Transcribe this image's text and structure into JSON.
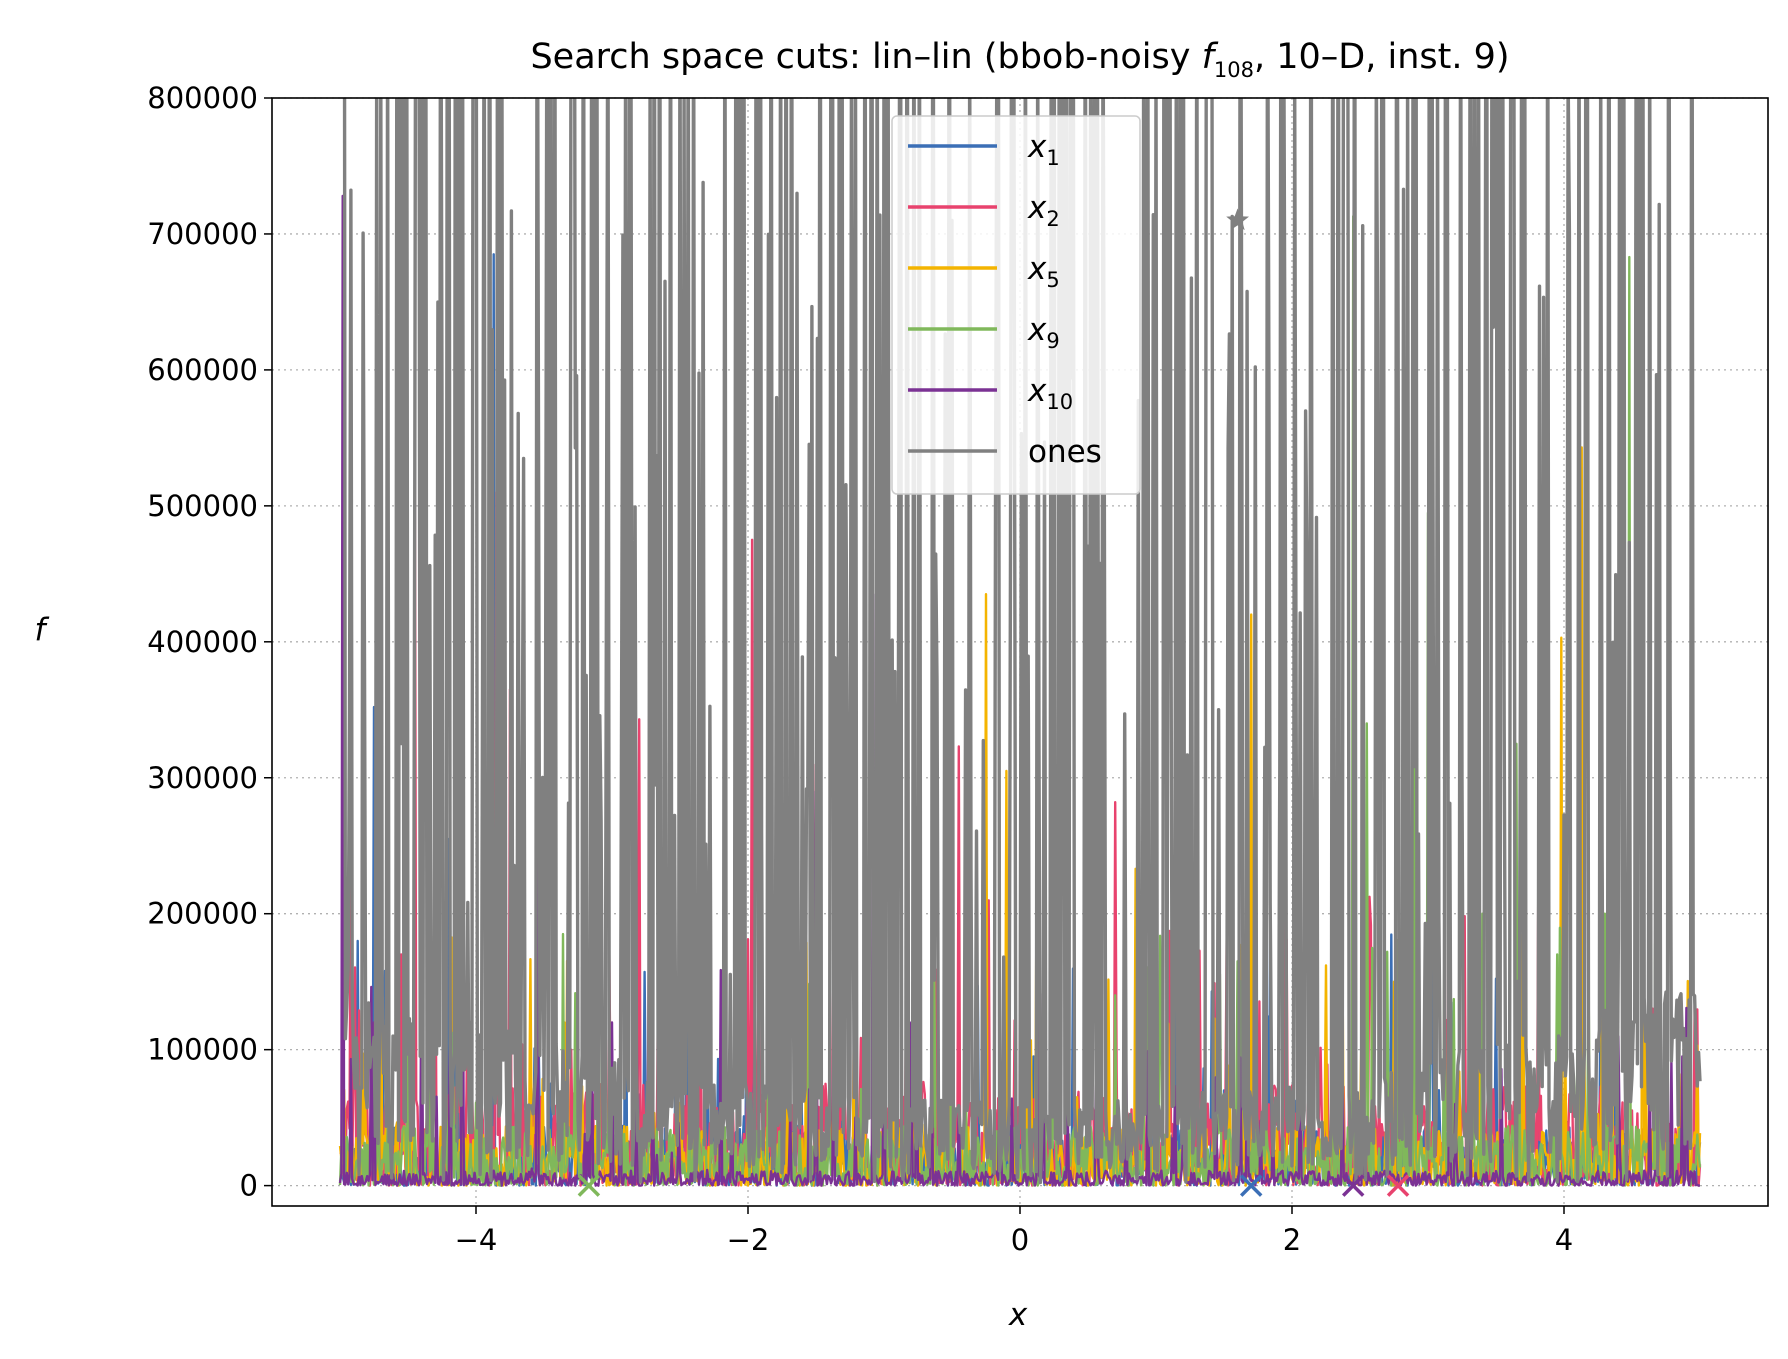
{
  "chart_data": {
    "type": "line",
    "title_parts": {
      "prefix": "Search space cuts: lin–lin (bbob-noisy ",
      "func_letter": "f",
      "func_sub": "108",
      "suffix": ", 10–D, inst. 9)"
    },
    "xlabel": "x",
    "ylabel": "f",
    "xlim": [
      -5.5,
      5.5
    ],
    "ylim": [
      -15000,
      800000
    ],
    "x_ticks": [
      -4,
      -2,
      0,
      2,
      4
    ],
    "x_tick_labels": [
      "−4",
      "−2",
      "0",
      "2",
      "4"
    ],
    "y_ticks": [
      0,
      100000,
      200000,
      300000,
      400000,
      500000,
      600000,
      700000,
      800000
    ],
    "y_tick_labels": [
      "0",
      "100000",
      "200000",
      "300000",
      "400000",
      "500000",
      "600000",
      "700000",
      "800000"
    ],
    "grid": true,
    "legend_placement": "upper-center",
    "x_range_sampled": [
      -5,
      5
    ],
    "series": [
      {
        "name": "x",
        "sub": "1",
        "color": "#3b6fb6",
        "peaks": [
          [
            -4.87,
            180000
          ],
          [
            -4.75,
            352000
          ],
          [
            -4.2,
            255000
          ],
          [
            -3.87,
            685000
          ],
          [
            -3.45,
            75000
          ],
          [
            -3.1,
            95000
          ],
          [
            -2.9,
            310000
          ],
          [
            -2.3,
            125000
          ],
          [
            -1.3,
            225000
          ],
          [
            -0.85,
            60000
          ],
          [
            0.1,
            95000
          ],
          [
            0.7,
            150000
          ],
          [
            1.5,
            70000
          ],
          [
            3.0,
            110000
          ],
          [
            4.4,
            60000
          ]
        ],
        "base": 20000
      },
      {
        "name": "x",
        "sub": "2",
        "color": "#e8436e",
        "peaks": [
          [
            -4.92,
            260000
          ],
          [
            -4.55,
            170000
          ],
          [
            -4.45,
            550000
          ],
          [
            -4.3,
            220000
          ],
          [
            -3.85,
            510000
          ],
          [
            -3.75,
            365000
          ],
          [
            -3.3,
            100000
          ],
          [
            -2.8,
            343000
          ],
          [
            -1.97,
            475000
          ],
          [
            -1.5,
            310000
          ],
          [
            -0.45,
            323000
          ],
          [
            0.05,
            195000
          ],
          [
            0.7,
            282000
          ],
          [
            0.95,
            170000
          ],
          [
            2.85,
            75000
          ],
          [
            3.3,
            90000
          ],
          [
            4.3,
            130000
          ],
          [
            4.9,
            110000
          ]
        ],
        "base": 35000
      },
      {
        "name": "x",
        "sub": "5",
        "color": "#f4b400",
        "peaks": [
          [
            -4.7,
            220000
          ],
          [
            -4.4,
            110000
          ],
          [
            -3.9,
            60000
          ],
          [
            -3.35,
            120000
          ],
          [
            -0.25,
            435000
          ],
          [
            -0.1,
            305000
          ],
          [
            0.85,
            233000
          ],
          [
            1.7,
            420000
          ],
          [
            2.25,
            162000
          ],
          [
            2.75,
            150000
          ],
          [
            3.7,
            150000
          ],
          [
            3.98,
            403000
          ],
          [
            4.13,
            543000
          ],
          [
            4.35,
            367000
          ],
          [
            4.58,
            440000
          ],
          [
            4.98,
            103000
          ]
        ],
        "base": 20000
      },
      {
        "name": "x",
        "sub": "9",
        "color": "#80b85b",
        "peaks": [
          [
            -4.5,
            160000
          ],
          [
            -3.0,
            70000
          ],
          [
            -2.0,
            60000
          ],
          [
            -0.4,
            90000
          ],
          [
            0.7,
            140000
          ],
          [
            0.95,
            265000
          ],
          [
            1.25,
            140000
          ],
          [
            1.6,
            165000
          ],
          [
            2.3,
            260000
          ],
          [
            2.45,
            713000
          ],
          [
            2.55,
            340000
          ],
          [
            2.7,
            172000
          ],
          [
            2.9,
            432000
          ],
          [
            3.0,
            495000
          ],
          [
            3.4,
            200000
          ],
          [
            3.65,
            325000
          ],
          [
            3.95,
            170000
          ],
          [
            4.3,
            200000
          ],
          [
            4.48,
            683000
          ],
          [
            4.7,
            270000
          ],
          [
            4.9,
            90000
          ]
        ],
        "base": 20000
      },
      {
        "name": "x",
        "sub": "10",
        "color": "#7b3294",
        "peaks": [
          [
            -4.98,
            728000
          ],
          [
            -4.75,
            120000
          ],
          [
            -4.4,
            200000
          ],
          [
            -4.1,
            340000
          ],
          [
            -3.55,
            370000
          ],
          [
            -3.0,
            120000
          ],
          [
            -2.7,
            80000
          ],
          [
            -1.5,
            290000
          ],
          [
            -1.08,
            435000
          ],
          [
            -0.8,
            120000
          ],
          [
            -0.15,
            80000
          ],
          [
            0.35,
            60000
          ],
          [
            1.2,
            40000
          ],
          [
            3.2,
            60000
          ],
          [
            4.4,
            110000
          ]
        ],
        "base": 5000
      },
      {
        "name": "ones",
        "sub": "",
        "color": "#808080",
        "peaks": [],
        "base": 60000
      }
    ],
    "markers": [
      {
        "type": "star",
        "x": 1.6,
        "y": 710000,
        "color": "#808080"
      },
      {
        "type": "x",
        "x": -3.17,
        "y": 0,
        "color": "#80b85b"
      },
      {
        "type": "x",
        "x": 1.7,
        "y": 0,
        "color": "#3b6fb6"
      },
      {
        "type": "x",
        "x": 2.45,
        "y": 0,
        "color": "#7b3294"
      },
      {
        "type": "x",
        "x": 2.78,
        "y": 0,
        "color": "#e8436e"
      }
    ]
  }
}
